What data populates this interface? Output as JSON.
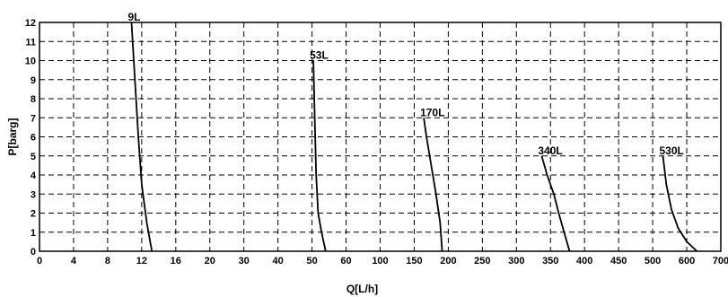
{
  "chart_data": {
    "type": "line",
    "xlabel": "Q[L/h]",
    "ylabel": "P[barg]",
    "x_ticks": [
      "0",
      "4",
      "8",
      "12",
      "16",
      "20",
      "30",
      "40",
      "50",
      "60",
      "100",
      "150",
      "200",
      "250",
      "300",
      "350",
      "400",
      "450",
      "500",
      "600",
      "700"
    ],
    "y_ticks": [
      0,
      1,
      2,
      3,
      4,
      5,
      6,
      7,
      8,
      9,
      10,
      11,
      12
    ],
    "ylim": [
      0,
      12
    ],
    "grid": true,
    "series": [
      {
        "name": "9L",
        "x": [
          10.8,
          11.2,
          11.6,
          12.0,
          12.6,
          13.2
        ],
        "y": [
          12,
          9,
          6,
          3.5,
          1.5,
          0
        ]
      },
      {
        "name": "53L",
        "x": [
          50.4,
          50.8,
          51.2,
          51.8,
          52.8,
          54.0
        ],
        "y": [
          10,
          7,
          4,
          2,
          1,
          0
        ]
      },
      {
        "name": "170L",
        "x": [
          164,
          168,
          175,
          182,
          188,
          191
        ],
        "y": [
          7,
          6,
          4.5,
          3,
          1.5,
          0
        ]
      },
      {
        "name": "340L",
        "x": [
          337,
          345,
          355,
          362,
          370,
          378
        ],
        "y": [
          5,
          4,
          3,
          2,
          1,
          0
        ]
      },
      {
        "name": "530L",
        "x": [
          530,
          540,
          555,
          575,
          600,
          630
        ],
        "y": [
          5,
          3.5,
          2.2,
          1.2,
          0.5,
          0
        ]
      }
    ]
  }
}
